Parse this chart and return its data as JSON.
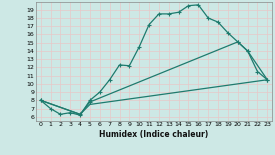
{
  "xlabel": "Humidex (Indice chaleur)",
  "bg_color": "#cde8e5",
  "grid_color": "#b0d4d0",
  "line_color": "#1e7b6e",
  "xlim": [
    -0.5,
    23.5
  ],
  "ylim": [
    5.5,
    20.0
  ],
  "xticks": [
    0,
    1,
    2,
    3,
    4,
    5,
    6,
    7,
    8,
    9,
    10,
    11,
    12,
    13,
    14,
    15,
    16,
    17,
    18,
    19,
    20,
    21,
    22,
    23
  ],
  "yticks": [
    6,
    7,
    8,
    9,
    10,
    11,
    12,
    13,
    14,
    15,
    16,
    17,
    18,
    19
  ],
  "curve1_x": [
    0,
    1,
    2,
    3,
    4,
    5,
    6,
    7,
    8,
    9,
    10,
    11,
    12,
    13,
    14,
    15,
    16,
    17,
    18,
    19,
    20,
    21,
    22,
    23
  ],
  "curve1_y": [
    8.0,
    7.0,
    6.3,
    6.5,
    6.2,
    8.0,
    9.0,
    10.5,
    12.3,
    12.2,
    14.5,
    17.2,
    18.5,
    18.5,
    18.7,
    19.5,
    19.6,
    18.0,
    17.5,
    16.2,
    15.1,
    14.0,
    11.5,
    10.5
  ],
  "curve2_x": [
    0,
    4,
    5,
    20,
    21,
    23
  ],
  "curve2_y": [
    8.0,
    6.3,
    7.8,
    15.1,
    14.0,
    10.5
  ],
  "curve3_x": [
    0,
    4,
    5,
    23
  ],
  "curve3_y": [
    8.0,
    6.3,
    7.5,
    10.5
  ]
}
